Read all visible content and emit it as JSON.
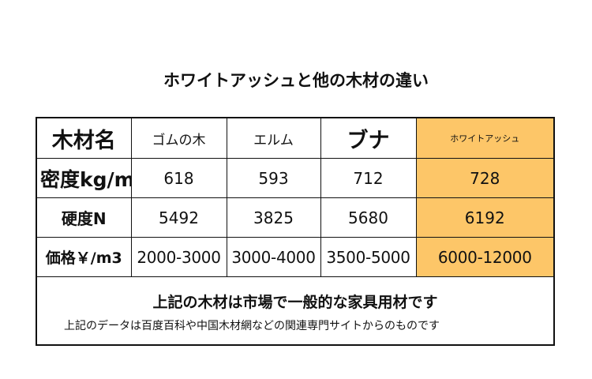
{
  "title": "ホワイトアッシュと他の木材の違い",
  "table": {
    "header": [
      "木材名",
      "ゴムの木",
      "エルム",
      "ブナ",
      "ホワイトアッシュ"
    ],
    "rows": [
      {
        "label": "密度kg/m",
        "values": [
          "618",
          "593",
          "712",
          "728"
        ]
      },
      {
        "label": "硬度N",
        "values": [
          "5492",
          "3825",
          "5680",
          "6192"
        ]
      },
      {
        "label": "価格￥/m3",
        "values": [
          "2000-3000",
          "3000-4000",
          "3500-5000",
          "6000-12000"
        ]
      }
    ]
  },
  "notes": {
    "line1": "上記の木材は市場で一般的な家具用材です",
    "line2": "上記のデータは百度百科や中国木材網などの関連専門サイトからのものです"
  },
  "colors": {
    "highlight": "#fdc668",
    "border": "#111111"
  }
}
